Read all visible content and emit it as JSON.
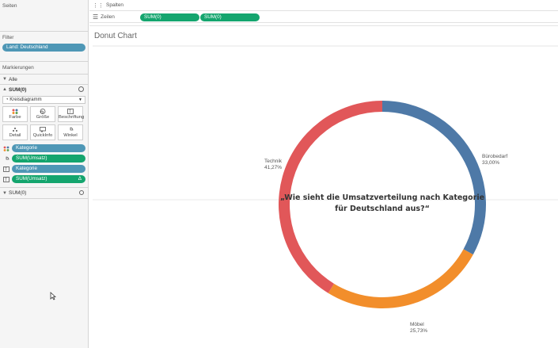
{
  "left": {
    "pages_title": "Seiten",
    "filter_title": "Filter",
    "filter_pill": "Land: Deutschland",
    "marks_title": "Markierungen",
    "all_label": "Alle",
    "sum_label": "SUM(0)",
    "mark_type": "Kreisdiagramm",
    "buttons": [
      "Farbe",
      "Größe",
      "Beschriftung",
      "Detail",
      "QuickInfo",
      "Winkel"
    ],
    "marks": [
      {
        "label": "Kategorie",
        "color": "#4e97b6"
      },
      {
        "label": "SUM(Umsatz)",
        "color": "#14a56e"
      },
      {
        "label": "Kategorie",
        "color": "#4e97b6"
      },
      {
        "label": "SUM(Umsatz)",
        "color": "#14a56e"
      }
    ],
    "sum_label2": "SUM(0)"
  },
  "shelves": {
    "columns_label": "Spalten",
    "rows_label": "Zeilen",
    "row_pills": [
      "SUM(0)",
      "SUM(0)"
    ]
  },
  "sheet": {
    "title": "Donut Chart",
    "question": [
      "„Wie sieht die Umsatzverteilung nach Kategorie",
      "für Deutschland aus?“"
    ]
  },
  "chart_data": {
    "type": "pie",
    "categories": [
      "Bürobedarf",
      "Möbel",
      "Technik"
    ],
    "values": [
      33.0,
      25.73,
      41.27
    ],
    "value_labels": [
      "33,00%",
      "25,73%",
      "41,27%"
    ],
    "colors": [
      "#4e79a7",
      "#f28e2b",
      "#e15759"
    ]
  }
}
